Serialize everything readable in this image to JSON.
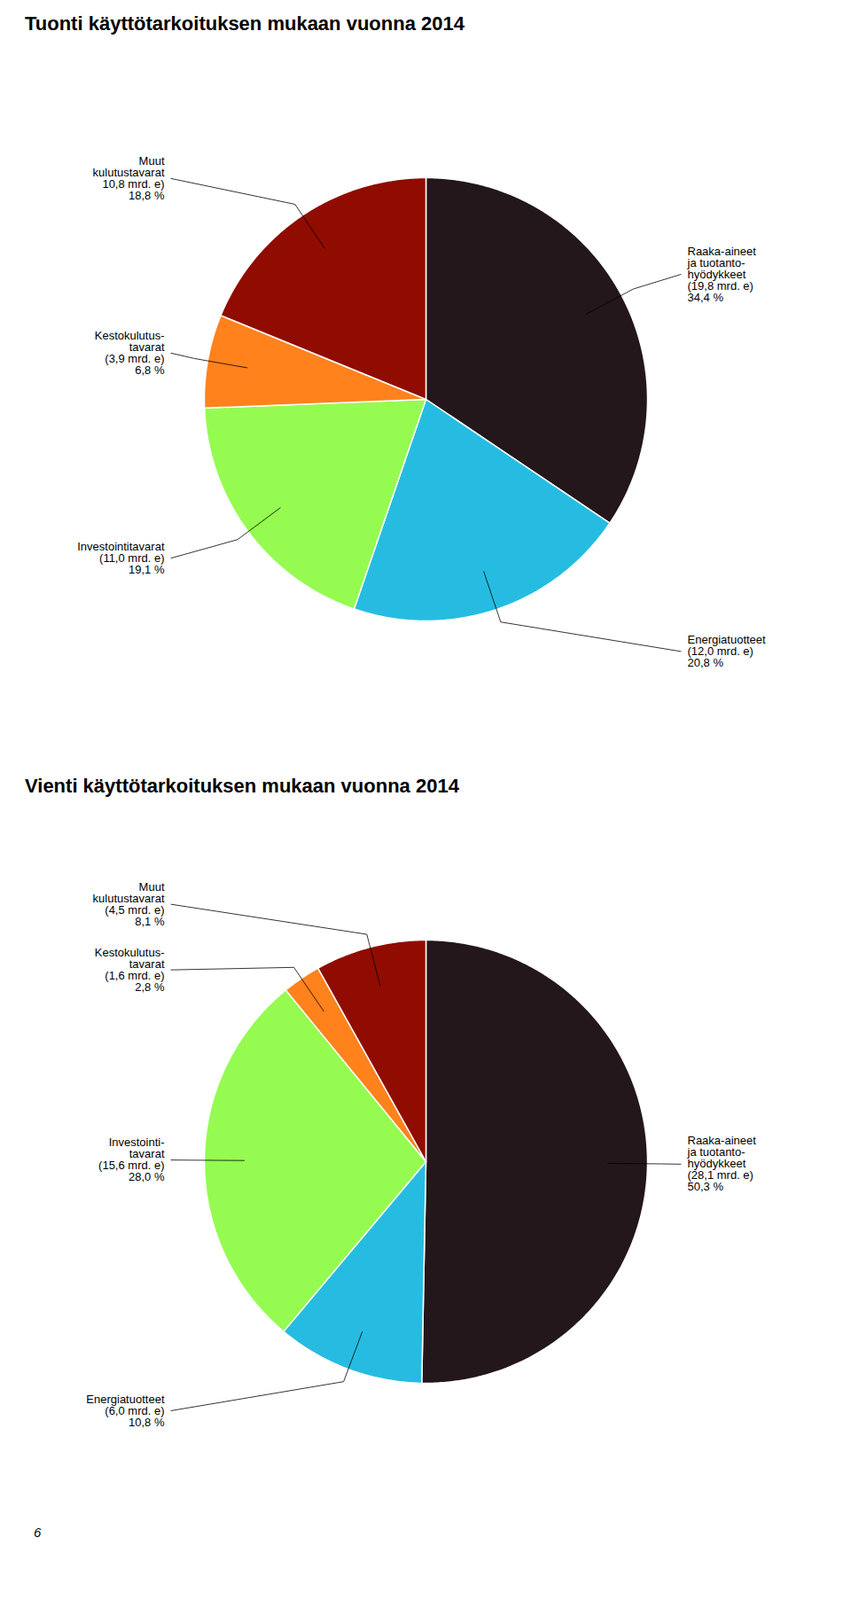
{
  "chart_data": [
    {
      "type": "pie",
      "title": "Tuonti käyttötarkoituksen mukaan vuonna 2014",
      "categories": [
        "Raaka-aineet\nja tuotanto-\nhyödykkeet\n(19,8 mrd. e)",
        "Energiatuotteet\n(12,0 mrd. e)",
        "Investointitavarat\n(11,0 mrd. e)",
        "Kestokulutus-\ntavarat\n(3,9 mrd. e)",
        "Muut\nkulutustavarat\n10,8 mrd. e)"
      ],
      "values": [
        34.4,
        20.8,
        19.1,
        6.8,
        18.8
      ],
      "value_labels": [
        "34,4 %",
        "20,8 %",
        "19,1 %",
        "6,8 %",
        "18,8 %"
      ]
    },
    {
      "type": "pie",
      "title": "Vienti käyttötarkoituksen mukaan vuonna 2014",
      "categories": [
        "Raaka-aineet\nja tuotanto-\nhyödykkeet\n(28,1 mrd. e)",
        "Energiatuotteet\n(6,0 mrd. e)",
        "Investointi-\ntavarat\n(15,6 mrd. e)",
        "Kestokulutus-\ntavarat\n(1,6 mrd. e)",
        "Muut\nkulutustavarat\n(4,5 mrd. e)"
      ],
      "values": [
        50.3,
        10.8,
        28.0,
        2.8,
        8.1
      ],
      "value_labels": [
        "50,3 %",
        "10,8 %",
        "28,0 %",
        "2,8 %",
        "8,1 %"
      ],
      "annotations": [
        "6"
      ]
    }
  ]
}
